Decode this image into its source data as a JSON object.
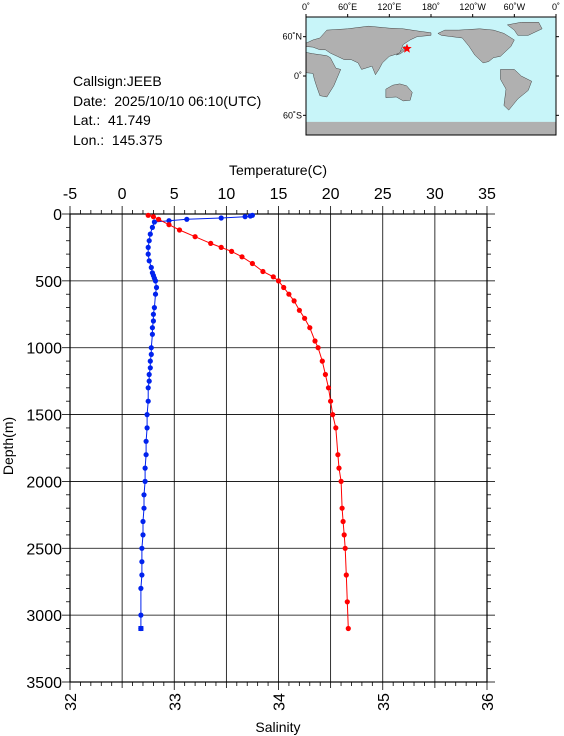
{
  "station": {
    "callsign": "Callsign:JEEB",
    "date": "Date:  2025/10/10 06:10(UTC)",
    "lat": "Lat.:  41.749",
    "lon": "Lon.:  145.375"
  },
  "map": {
    "lon_labels": [
      "0˚",
      "60˚E",
      "120˚E",
      "180˚",
      "120˚W",
      "60˚W",
      "0˚"
    ],
    "lat_labels": [
      "60˚N",
      "0˚",
      "60˚S"
    ],
    "station_marker": {
      "lat": 41.749,
      "lon": 145.375
    },
    "colors": {
      "ocean": "#c8f5f9",
      "land": "#b0b0b0",
      "marker": "#ff0000"
    }
  },
  "chart_data": {
    "type": "line",
    "ylabel": "Depth(m)",
    "ylim": [
      0,
      3500
    ],
    "yticks": [
      0,
      500,
      1000,
      1500,
      2000,
      2500,
      3000,
      3500
    ],
    "top_axis": {
      "label": "Temperature(C)",
      "range": [
        -5,
        35
      ],
      "ticks": [
        -5,
        0,
        5,
        10,
        15,
        20,
        25,
        30,
        35
      ]
    },
    "bottom_axis": {
      "label": "Salinity",
      "range": [
        32,
        36
      ],
      "ticks": [
        32,
        33,
        34,
        35,
        36
      ]
    },
    "grid": true,
    "series": [
      {
        "axis": "top",
        "color": "#0022ee",
        "x": [
          12.5,
          12.3,
          11.8,
          9.5,
          6.2,
          4.5,
          3.1,
          2.9,
          2.7,
          2.6,
          2.5,
          2.5,
          2.6,
          2.8,
          2.9,
          3.0,
          3.1,
          3.2,
          3.3,
          3.2,
          3.1,
          3.0,
          3.0,
          2.9,
          2.9,
          2.8,
          2.8,
          2.7,
          2.7,
          2.6,
          2.6,
          2.5,
          2.5,
          2.4,
          2.4,
          2.3,
          2.3,
          2.2,
          2.2,
          2.1,
          2.1,
          2.0,
          2.0,
          1.9,
          1.9,
          1.9,
          1.8,
          1.8,
          1.8
        ],
        "y": [
          10,
          15,
          20,
          30,
          40,
          50,
          60,
          100,
          150,
          200,
          250,
          300,
          350,
          400,
          440,
          460,
          480,
          500,
          550,
          600,
          700,
          750,
          800,
          850,
          900,
          1000,
          1050,
          1100,
          1150,
          1200,
          1250,
          1300,
          1400,
          1500,
          1600,
          1700,
          1800,
          1900,
          2000,
          2100,
          2200,
          2300,
          2400,
          2500,
          2600,
          2700,
          2800,
          3000,
          3100
        ]
      },
      {
        "axis": "bottom",
        "color": "#ff0000",
        "x": [
          32.75,
          32.8,
          32.85,
          32.95,
          33.05,
          33.2,
          33.35,
          33.45,
          33.55,
          33.65,
          33.75,
          33.85,
          33.95,
          34.0,
          34.05,
          34.1,
          34.15,
          34.2,
          34.25,
          34.3,
          34.35,
          34.38,
          34.42,
          34.45,
          34.48,
          34.5,
          34.52,
          34.55,
          34.57,
          34.58,
          34.6,
          34.61,
          34.62,
          34.63,
          34.64,
          34.65,
          34.66,
          34.67
        ],
        "y": [
          10,
          20,
          40,
          80,
          120,
          170,
          220,
          250,
          280,
          320,
          370,
          430,
          470,
          500,
          550,
          600,
          650,
          720,
          780,
          850,
          950,
          1000,
          1100,
          1200,
          1300,
          1400,
          1500,
          1600,
          1800,
          1900,
          2000,
          2200,
          2300,
          2400,
          2500,
          2700,
          2900,
          3100
        ]
      }
    ]
  }
}
